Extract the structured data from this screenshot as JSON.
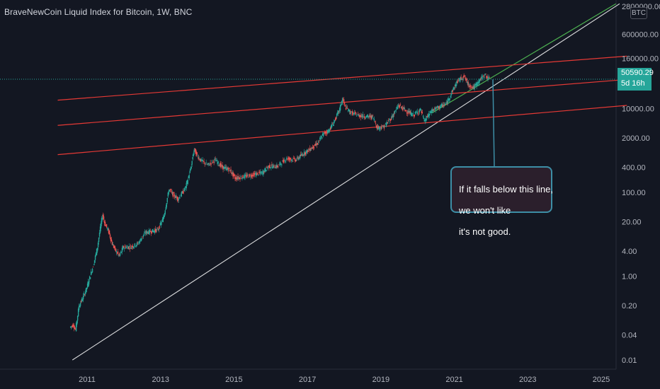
{
  "header": {
    "title": "BraveNewCoin Liquid Index for Bitcoin, 1W, BNC"
  },
  "axis": {
    "currency_badge": "BTC",
    "y_ticks": [
      {
        "value": 0.01,
        "label": "0.01"
      },
      {
        "value": 0.04,
        "label": "0.04"
      },
      {
        "value": 0.2,
        "label": "0.20"
      },
      {
        "value": 1,
        "label": "1.00"
      },
      {
        "value": 4,
        "label": "4.00"
      },
      {
        "value": 20,
        "label": "20.00"
      },
      {
        "value": 100,
        "label": "100.00"
      },
      {
        "value": 400,
        "label": "400.00"
      },
      {
        "value": 2000,
        "label": "2000.00"
      },
      {
        "value": 10000,
        "label": "10000.00"
      },
      {
        "value": 160000,
        "label": "160000.00"
      },
      {
        "value": 600000,
        "label": "600000.00"
      },
      {
        "value": 2800000,
        "label": "2800000.00"
      }
    ],
    "x_ticks": [
      "2011",
      "2013",
      "2015",
      "2017",
      "2019",
      "2021",
      "2023",
      "2025"
    ]
  },
  "price_label": {
    "value": "50590.29",
    "countdown": "5d 16h",
    "color": "#26a69a"
  },
  "callout": {
    "lines": [
      "If it falls below this line,",
      "we won't like",
      "it's not good."
    ]
  },
  "chart_data": {
    "type": "candlestick",
    "scale": "log",
    "ylim": [
      0.008,
      3200000
    ],
    "xlim": [
      2010.2,
      2025.7
    ],
    "grid": false,
    "last_price": 50590.29,
    "price_path": [
      [
        2010.55,
        0.06
      ],
      [
        2010.65,
        0.07
      ],
      [
        2010.7,
        0.05
      ],
      [
        2010.8,
        0.2
      ],
      [
        2010.9,
        0.3
      ],
      [
        2011.0,
        0.5
      ],
      [
        2011.1,
        1.0
      ],
      [
        2011.2,
        2.0
      ],
      [
        2011.3,
        5
      ],
      [
        2011.35,
        10
      ],
      [
        2011.44,
        30
      ],
      [
        2011.5,
        18
      ],
      [
        2011.6,
        12
      ],
      [
        2011.7,
        6
      ],
      [
        2011.8,
        4
      ],
      [
        2011.9,
        3
      ],
      [
        2012.0,
        5
      ],
      [
        2012.2,
        5
      ],
      [
        2012.4,
        6
      ],
      [
        2012.6,
        11
      ],
      [
        2012.8,
        12
      ],
      [
        2012.95,
        13
      ],
      [
        2013.1,
        25
      ],
      [
        2013.25,
        120
      ],
      [
        2013.35,
        90
      ],
      [
        2013.5,
        70
      ],
      [
        2013.7,
        130
      ],
      [
        2013.85,
        400
      ],
      [
        2013.93,
        1100
      ],
      [
        2014.0,
        800
      ],
      [
        2014.1,
        600
      ],
      [
        2014.3,
        450
      ],
      [
        2014.5,
        600
      ],
      [
        2014.7,
        400
      ],
      [
        2014.9,
        350
      ],
      [
        2015.05,
        220
      ],
      [
        2015.3,
        240
      ],
      [
        2015.5,
        260
      ],
      [
        2015.8,
        300
      ],
      [
        2015.95,
        420
      ],
      [
        2016.2,
        420
      ],
      [
        2016.45,
        650
      ],
      [
        2016.7,
        600
      ],
      [
        2016.95,
        900
      ],
      [
        2017.1,
        1100
      ],
      [
        2017.3,
        1500
      ],
      [
        2017.45,
        2500
      ],
      [
        2017.6,
        3000
      ],
      [
        2017.75,
        5000
      ],
      [
        2017.9,
        10000
      ],
      [
        2017.97,
        17500
      ],
      [
        2018.05,
        11000
      ],
      [
        2018.2,
        8000
      ],
      [
        2018.4,
        7000
      ],
      [
        2018.6,
        6500
      ],
      [
        2018.8,
        6400
      ],
      [
        2018.92,
        3500
      ],
      [
        2019.1,
        3700
      ],
      [
        2019.3,
        6000
      ],
      [
        2019.5,
        12000
      ],
      [
        2019.7,
        9000
      ],
      [
        2019.9,
        7000
      ],
      [
        2020.1,
        9500
      ],
      [
        2020.2,
        5000
      ],
      [
        2020.4,
        9000
      ],
      [
        2020.6,
        11000
      ],
      [
        2020.8,
        13000
      ],
      [
        2020.95,
        25000
      ],
      [
        2021.1,
        45000
      ],
      [
        2021.28,
        60000
      ],
      [
        2021.4,
        37000
      ],
      [
        2021.55,
        32000
      ],
      [
        2021.7,
        47000
      ],
      [
        2021.85,
        65000
      ],
      [
        2021.96,
        50590.29
      ]
    ],
    "trendlines": [
      {
        "color": "#ffffff",
        "points": [
          [
            2010.6,
            0.01
          ],
          [
            2025.5,
            3200000
          ]
        ]
      },
      {
        "color": "#4caf50",
        "points": [
          [
            2020.4,
            8000
          ],
          [
            2025.4,
            3200000
          ]
        ]
      },
      {
        "color": "#e53935",
        "points": [
          [
            2010.2,
            800
          ],
          [
            2025.7,
            12000
          ]
        ]
      },
      {
        "color": "#e53935",
        "points": [
          [
            2010.2,
            4000
          ],
          [
            2025.7,
            50000
          ]
        ]
      },
      {
        "color": "#e53935",
        "points": [
          [
            2010.2,
            16000
          ],
          [
            2025.7,
            180000
          ]
        ]
      }
    ],
    "callout_target": [
      2022.05,
      50000
    ]
  }
}
